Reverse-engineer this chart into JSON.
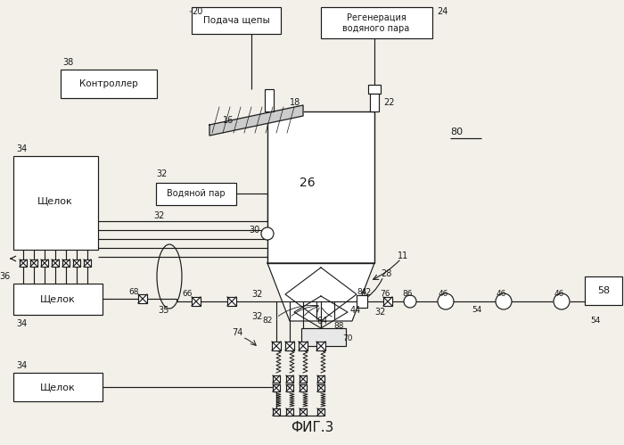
{
  "bg": "#f2f0e8",
  "fg": "#1a1a1a",
  "title": "ФИГ.3",
  "label_20": "20",
  "label_24": "24",
  "label_38": "38",
  "label_80": "80",
  "box_podacha": "Подача щепы",
  "box_regen": "Регенерация\nводяного пара",
  "box_kontr": "Контроллер",
  "box_vodpar": "Водяной пар",
  "box_shelok": "Щелок",
  "label_58": "58",
  "figcap": "ФИГ.3"
}
